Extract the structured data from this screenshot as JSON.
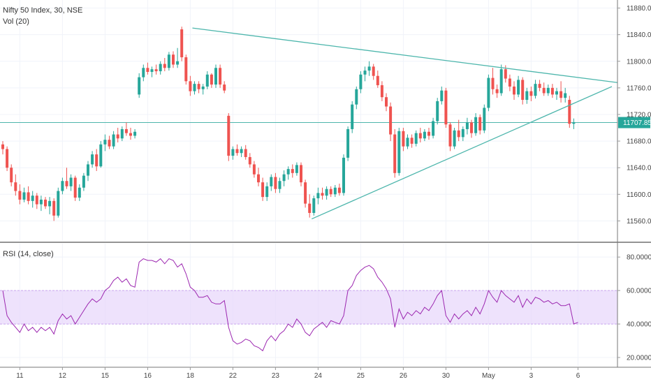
{
  "legend": {
    "symbol": "Nifty 50 Index, 30, NSE",
    "volume": "Vol (20)",
    "rsi": "RSI (14, close)"
  },
  "colors": {
    "up": "#26a69a",
    "down": "#ef5350",
    "trendline": "#4db6ac",
    "rsi_line": "#9c27b0",
    "rsi_band": "#e7d6fb",
    "price_tag": "#26a69a"
  },
  "last_price": {
    "value": 11707.85,
    "label": "11707.85"
  },
  "chart_data": [
    {
      "type": "candlestick",
      "title": "Nifty 50 Index, 30, NSE",
      "ylim": [
        11530,
        11890
      ],
      "y_ticks": [
        11560,
        11600,
        11640,
        11680,
        11720,
        11760,
        11800,
        11840,
        11880
      ],
      "y_tick_labels": [
        "11560.00",
        "11600.00",
        "11640.00",
        "11680.00",
        "11720.00",
        "11760.00",
        "11800.00",
        "11840.00",
        "11880.00"
      ],
      "x_tick_labels": [
        "11",
        "12",
        "15",
        "16",
        "18",
        "22",
        "23",
        "24",
        "25",
        "26",
        "30",
        "May",
        "3",
        "6"
      ],
      "x_tick_bar_index": [
        4,
        14,
        24,
        34,
        44,
        54,
        64,
        74,
        84,
        94,
        104,
        114,
        124,
        135
      ],
      "ohlc": [
        [
          11675,
          11680,
          11660,
          11668
        ],
        [
          11668,
          11672,
          11635,
          11640
        ],
        [
          11640,
          11645,
          11612,
          11618
        ],
        [
          11618,
          11630,
          11598,
          11605
        ],
        [
          11605,
          11615,
          11585,
          11592
        ],
        [
          11592,
          11610,
          11588,
          11603
        ],
        [
          11603,
          11612,
          11585,
          11590
        ],
        [
          11590,
          11605,
          11580,
          11598
        ],
        [
          11598,
          11602,
          11578,
          11585
        ],
        [
          11585,
          11598,
          11575,
          11592
        ],
        [
          11592,
          11596,
          11578,
          11582
        ],
        [
          11582,
          11596,
          11570,
          11590
        ],
        [
          11590,
          11594,
          11560,
          11568
        ],
        [
          11568,
          11610,
          11565,
          11605
        ],
        [
          11605,
          11625,
          11600,
          11620
        ],
        [
          11620,
          11640,
          11608,
          11612
        ],
        [
          11612,
          11630,
          11605,
          11625
        ],
        [
          11625,
          11628,
          11590,
          11595
        ],
        [
          11595,
          11615,
          11590,
          11610
        ],
        [
          11610,
          11632,
          11605,
          11628
        ],
        [
          11628,
          11650,
          11620,
          11645
        ],
        [
          11645,
          11665,
          11640,
          11660
        ],
        [
          11660,
          11668,
          11635,
          11642
        ],
        [
          11642,
          11680,
          11640,
          11675
        ],
        [
          11675,
          11690,
          11665,
          11682
        ],
        [
          11682,
          11688,
          11668,
          11672
        ],
        [
          11672,
          11695,
          11668,
          11690
        ],
        [
          11690,
          11700,
          11678,
          11684
        ],
        [
          11684,
          11702,
          11680,
          11698
        ],
        [
          11698,
          11708,
          11688,
          11692
        ],
        [
          11692,
          11700,
          11682,
          11688
        ],
        [
          11688,
          11698,
          11684,
          11694
        ],
        [
          11750,
          11782,
          11745,
          11776
        ],
        [
          11776,
          11795,
          11770,
          11790
        ],
        [
          11790,
          11798,
          11780,
          11784
        ],
        [
          11784,
          11792,
          11776,
          11788
        ],
        [
          11788,
          11795,
          11780,
          11785
        ],
        [
          11785,
          11800,
          11780,
          11796
        ],
        [
          11796,
          11805,
          11785,
          11790
        ],
        [
          11790,
          11814,
          11786,
          11810
        ],
        [
          11810,
          11815,
          11790,
          11795
        ],
        [
          11795,
          11820,
          11790,
          11800
        ],
        [
          11848,
          11852,
          11800,
          11806
        ],
        [
          11806,
          11810,
          11765,
          11770
        ],
        [
          11770,
          11778,
          11748,
          11755
        ],
        [
          11755,
          11770,
          11750,
          11766
        ],
        [
          11766,
          11770,
          11752,
          11758
        ],
        [
          11758,
          11766,
          11750,
          11762
        ],
        [
          11762,
          11785,
          11758,
          11780
        ],
        [
          11780,
          11782,
          11760,
          11765
        ],
        [
          11765,
          11795,
          11760,
          11790
        ],
        [
          11790,
          11795,
          11760,
          11765
        ],
        [
          11765,
          11770,
          11752,
          11756
        ],
        [
          11718,
          11722,
          11650,
          11658
        ],
        [
          11658,
          11672,
          11652,
          11668
        ],
        [
          11668,
          11675,
          11658,
          11662
        ],
        [
          11662,
          11672,
          11656,
          11668
        ],
        [
          11668,
          11674,
          11652,
          11656
        ],
        [
          11656,
          11662,
          11640,
          11645
        ],
        [
          11645,
          11650,
          11625,
          11630
        ],
        [
          11630,
          11640,
          11612,
          11618
        ],
        [
          11618,
          11625,
          11590,
          11596
        ],
        [
          11596,
          11618,
          11590,
          11612
        ],
        [
          11612,
          11630,
          11605,
          11626
        ],
        [
          11626,
          11632,
          11602,
          11608
        ],
        [
          11608,
          11625,
          11602,
          11620
        ],
        [
          11620,
          11636,
          11612,
          11630
        ],
        [
          11630,
          11642,
          11622,
          11638
        ],
        [
          11638,
          11645,
          11625,
          11632
        ],
        [
          11632,
          11648,
          11628,
          11644
        ],
        [
          11644,
          11648,
          11612,
          11618
        ],
        [
          11618,
          11622,
          11580,
          11586
        ],
        [
          11586,
          11600,
          11565,
          11572
        ],
        [
          11572,
          11598,
          11568,
          11594
        ],
        [
          11594,
          11610,
          11585,
          11602
        ],
        [
          11602,
          11610,
          11592,
          11598
        ],
        [
          11598,
          11612,
          11592,
          11608
        ],
        [
          11608,
          11612,
          11596,
          11600
        ],
        [
          11600,
          11614,
          11596,
          11610
        ],
        [
          11610,
          11616,
          11598,
          11602
        ],
        [
          11602,
          11660,
          11598,
          11655
        ],
        [
          11655,
          11702,
          11650,
          11698
        ],
        [
          11698,
          11740,
          11692,
          11735
        ],
        [
          11735,
          11762,
          11728,
          11758
        ],
        [
          11758,
          11785,
          11752,
          11780
        ],
        [
          11780,
          11792,
          11770,
          11786
        ],
        [
          11786,
          11800,
          11778,
          11792
        ],
        [
          11792,
          11796,
          11772,
          11778
        ],
        [
          11778,
          11786,
          11760,
          11764
        ],
        [
          11764,
          11770,
          11740,
          11746
        ],
        [
          11746,
          11752,
          11725,
          11732
        ],
        [
          11732,
          11738,
          11680,
          11690
        ],
        [
          11690,
          11698,
          11625,
          11632
        ],
        [
          11632,
          11700,
          11628,
          11695
        ],
        [
          11695,
          11700,
          11665,
          11672
        ],
        [
          11672,
          11690,
          11668,
          11685
        ],
        [
          11685,
          11690,
          11670,
          11676
        ],
        [
          11676,
          11696,
          11672,
          11692
        ],
        [
          11692,
          11700,
          11678,
          11684
        ],
        [
          11684,
          11698,
          11680,
          11694
        ],
        [
          11694,
          11700,
          11682,
          11688
        ],
        [
          11688,
          11715,
          11684,
          11710
        ],
        [
          11710,
          11745,
          11705,
          11740
        ],
        [
          11740,
          11762,
          11735,
          11756
        ],
        [
          11756,
          11760,
          11700,
          11705
        ],
        [
          11705,
          11708,
          11665,
          11672
        ],
        [
          11672,
          11700,
          11668,
          11696
        ],
        [
          11696,
          11712,
          11680,
          11686
        ],
        [
          11686,
          11702,
          11680,
          11698
        ],
        [
          11698,
          11715,
          11690,
          11708
        ],
        [
          11708,
          11712,
          11685,
          11692
        ],
        [
          11692,
          11722,
          11688,
          11716
        ],
        [
          11716,
          11720,
          11690,
          11696
        ],
        [
          11696,
          11735,
          11692,
          11730
        ],
        [
          11730,
          11780,
          11725,
          11775
        ],
        [
          11775,
          11790,
          11750,
          11758
        ],
        [
          11758,
          11765,
          11745,
          11752
        ],
        [
          11752,
          11795,
          11748,
          11788
        ],
        [
          11788,
          11794,
          11768,
          11774
        ],
        [
          11774,
          11780,
          11755,
          11762
        ],
        [
          11762,
          11770,
          11742,
          11750
        ],
        [
          11750,
          11778,
          11746,
          11772
        ],
        [
          11772,
          11776,
          11735,
          11742
        ],
        [
          11742,
          11760,
          11736,
          11755
        ],
        [
          11755,
          11762,
          11740,
          11748
        ],
        [
          11748,
          11772,
          11744,
          11766
        ],
        [
          11766,
          11772,
          11755,
          11760
        ],
        [
          11760,
          11768,
          11748,
          11752
        ],
        [
          11752,
          11765,
          11748,
          11760
        ],
        [
          11760,
          11766,
          11745,
          11750
        ],
        [
          11750,
          11760,
          11742,
          11755
        ],
        [
          11755,
          11770,
          11738,
          11745
        ],
        [
          11745,
          11760,
          11738,
          11752
        ],
        [
          11742,
          11748,
          11700,
          11706
        ],
        [
          11706,
          11714,
          11698,
          11708
        ]
      ]
    },
    {
      "type": "line",
      "title": "RSI (14, close)",
      "ylim": [
        15,
        88
      ],
      "y_ticks": [
        20,
        40,
        60,
        80
      ],
      "y_tick_labels": [
        "20.0000",
        "40.0000",
        "60.0000",
        "80.0000"
      ],
      "band": [
        40,
        60
      ],
      "values": [
        60,
        45,
        41,
        38,
        35,
        40,
        36,
        38,
        35,
        38,
        36,
        38,
        34,
        42,
        46,
        43,
        45,
        40,
        44,
        48,
        52,
        55,
        53,
        55,
        60,
        62,
        66,
        68,
        65,
        67,
        63,
        62,
        77,
        79,
        78,
        78,
        77,
        79,
        76,
        79,
        78,
        74,
        76,
        70,
        62,
        60,
        56,
        56,
        57,
        53,
        52,
        52,
        54,
        38,
        30,
        28,
        29,
        31,
        30,
        27,
        26,
        24,
        30,
        33,
        30,
        34,
        36,
        40,
        38,
        43,
        40,
        35,
        33,
        37,
        39,
        41,
        38,
        42,
        41,
        40,
        45,
        60,
        63,
        69,
        72,
        74,
        75,
        73,
        68,
        65,
        61,
        55,
        38,
        49,
        43,
        47,
        45,
        48,
        46,
        50,
        48,
        52,
        57,
        60,
        45,
        41,
        46,
        43,
        46,
        48,
        45,
        50,
        46,
        52,
        60,
        56,
        53,
        60,
        57,
        55,
        53,
        57,
        50,
        55,
        52,
        56,
        55,
        53,
        54,
        52,
        53,
        51,
        51,
        52,
        40,
        41
      ]
    }
  ]
}
